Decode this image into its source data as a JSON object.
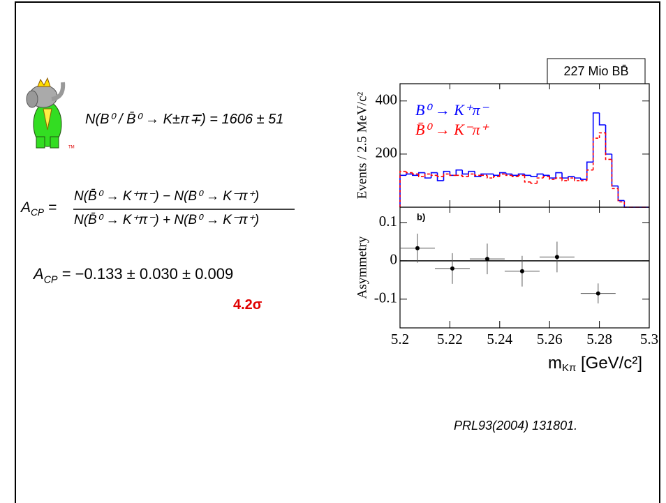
{
  "slide": {
    "logo_mark": "TM",
    "yield_formula": "N(B⁰ / B̄⁰ → K±π∓) = 1606 ± 51",
    "acp_lhs": {
      "main": "A",
      "sub": "CP",
      "eq": "="
    },
    "acp_numerator": "N(B̄⁰ → K⁺π⁻) − N(B⁰ → K⁻π⁺)",
    "acp_denominator": "N(B̄⁰ → K⁺π⁻) + N(B⁰ → K⁻π⁺)",
    "acp_result": {
      "main": "A",
      "sub": "CP",
      "rest": "= −0.133 ± 0.030 ± 0.009"
    },
    "significance": "4.2σ",
    "citation": "PRL93(2004) 131801."
  },
  "chart_data": [
    {
      "type": "histogram",
      "annotation": "227 Mio BB̄",
      "y_label": "Events / 2.5 MeV/c²",
      "bins": [
        5.2,
        5.2025,
        5.205,
        5.2075,
        5.21,
        5.2125,
        5.215,
        5.2175,
        5.22,
        5.2225,
        5.225,
        5.2275,
        5.23,
        5.2325,
        5.235,
        5.2375,
        5.24,
        5.2425,
        5.245,
        5.2475,
        5.25,
        5.2525,
        5.255,
        5.2575,
        5.26,
        5.2625,
        5.265,
        5.2675,
        5.27,
        5.2725,
        5.275,
        5.2775,
        5.28,
        5.2825,
        5.285,
        5.2875,
        5.29,
        5.2925,
        5.295,
        5.2975,
        5.3
      ],
      "series": [
        {
          "name": "B⁰ → K⁺π⁻",
          "color": "#0000ff",
          "dashed": false,
          "values": [
            120,
            125,
            120,
            130,
            110,
            130,
            100,
            135,
            120,
            140,
            125,
            135,
            115,
            125,
            125,
            120,
            130,
            125,
            120,
            125,
            120,
            115,
            125,
            120,
            110,
            130,
            110,
            115,
            110,
            105,
            170,
            355,
            310,
            200,
            80,
            25,
            0,
            0,
            0,
            0
          ]
        },
        {
          "name": "B̄⁰ → K⁻π⁺",
          "color": "#ff0000",
          "dashed": true,
          "values": [
            135,
            130,
            125,
            115,
            125,
            120,
            115,
            125,
            120,
            120,
            115,
            125,
            120,
            120,
            110,
            115,
            125,
            120,
            115,
            120,
            95,
            90,
            110,
            115,
            105,
            110,
            100,
            110,
            100,
            100,
            140,
            260,
            280,
            180,
            70,
            20,
            0,
            0,
            0,
            0
          ]
        }
      ],
      "xlim": [
        5.2,
        5.3
      ],
      "xticks": [
        5.2,
        5.22,
        5.24,
        5.26,
        5.28,
        5.3
      ],
      "xtick_labels": false,
      "ylim": [
        0,
        465
      ],
      "yticks": [
        200,
        400
      ]
    },
    {
      "type": "errorbar",
      "panel_label": "b)",
      "y_label": "Asymmetry",
      "x_label": [
        "m",
        "Kπ",
        " [GeV/c²]"
      ],
      "x": [
        5.207,
        5.221,
        5.235,
        5.249,
        5.263,
        5.2795
      ],
      "values": [
        0.033,
        -0.02,
        0.005,
        -0.027,
        0.01,
        -0.085
      ],
      "xerr": [
        0.007,
        0.007,
        0.007,
        0.007,
        0.007,
        0.007
      ],
      "yerr": [
        0.038,
        0.04,
        0.04,
        0.04,
        0.04,
        0.026
      ],
      "color": "#000000",
      "reference_line": 0,
      "xlim": [
        5.2,
        5.3
      ],
      "xticks": [
        5.2,
        5.22,
        5.24,
        5.26,
        5.28,
        5.3
      ],
      "xtick_labels": true,
      "ylim": [
        -0.175,
        0.14
      ],
      "yticks": [
        0.1,
        0,
        -0.1
      ]
    }
  ]
}
